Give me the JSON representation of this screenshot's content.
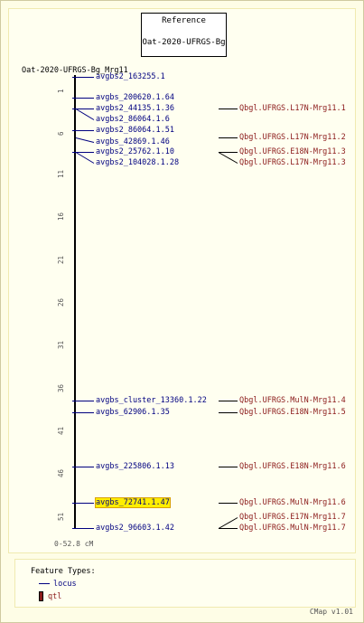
{
  "reference": {
    "title": "Reference",
    "map": "Oat-2020-UFRGS-Bg"
  },
  "map_name": "Oat-2020-UFRGS-Bg_Mrg11",
  "ticks": [
    "1",
    "6",
    "11",
    "16",
    "21",
    "26",
    "31",
    "36",
    "41",
    "46",
    "51"
  ],
  "range_label": "0-52.8 cM",
  "loci": [
    {
      "name": "avgbs2_163255.1"
    },
    {
      "name": "avgbs_200620.1.64"
    },
    {
      "name": "avgbs2_44135.1.36"
    },
    {
      "name": "avgbs2_86064.1.6"
    },
    {
      "name": "avgbs2_86064.1.51"
    },
    {
      "name": "avgbs_42869.1.46"
    },
    {
      "name": "avgbs2_25762.1.10"
    },
    {
      "name": "avgbs2_104028.1.28"
    },
    {
      "name": "avgbs_cluster_13360.1.22"
    },
    {
      "name": "avgbs_62906.1.35"
    },
    {
      "name": "avgbs_225806.1.13"
    },
    {
      "name": "avgbs_72741.1.47",
      "highlight": true
    },
    {
      "name": "avgbs2_96603.1.42"
    }
  ],
  "qtls": [
    {
      "name": "Qbgl.UFRGS.L17N-Mrg11.1"
    },
    {
      "name": "Qbgl.UFRGS.L17N-Mrg11.2"
    },
    {
      "name": "Qbgl.UFRGS.E18N-Mrg11.3"
    },
    {
      "name": "Qbgl.UFRGS.L17N-Mrg11.3"
    },
    {
      "name": "Qbgl.UFRGS.MulN-Mrg11.4"
    },
    {
      "name": "Qbgl.UFRGS.E18N-Mrg11.5"
    },
    {
      "name": "Qbgl.UFRGS.E18N-Mrg11.6"
    },
    {
      "name": "Qbgl.UFRGS.MulN-Mrg11.6"
    },
    {
      "name": "Qbgl.UFRGS.E17N-Mrg11.7"
    },
    {
      "name": "Qbgl.UFRGS.MulN-Mrg11.7"
    }
  ],
  "legend": {
    "title": "Feature Types:",
    "locus": "locus",
    "qtl": "qtl"
  },
  "version": "CMap v1.01",
  "colors": {
    "locus": "#000080",
    "qtl": "#8b1a1a",
    "highlight": "#ffee00"
  }
}
